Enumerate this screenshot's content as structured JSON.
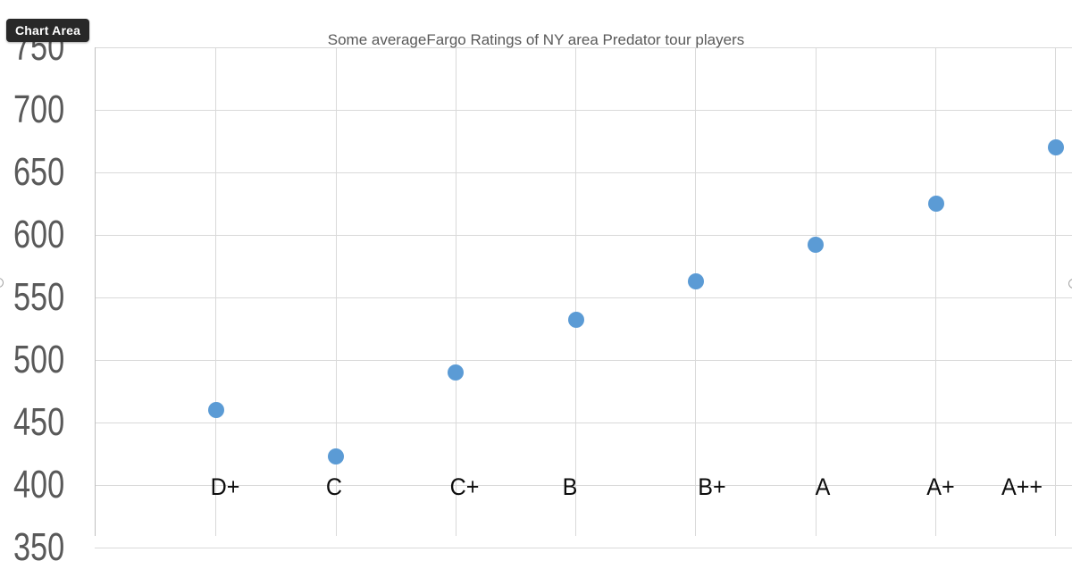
{
  "tooltip": {
    "label": "Chart Area"
  },
  "chart_data": {
    "type": "scatter",
    "title": "Some averageFargo Ratings of NY area Predator tour players",
    "categories": [
      "D+",
      "C",
      "C+",
      "B",
      "B+",
      "A",
      "A+",
      "A++"
    ],
    "values": [
      460,
      423,
      490,
      532,
      563,
      592,
      625,
      670
    ],
    "y_ticks": [
      750,
      700,
      650,
      600,
      550,
      500,
      450,
      400,
      350
    ],
    "ylim": [
      350,
      750
    ],
    "x_axis_crosses_at": 400,
    "grid": true,
    "legend_position": "none",
    "marker_color": "#5B9BD5"
  },
  "colors": {
    "background": "#FFFFFF",
    "gridline": "#D9D9D9",
    "plot_border": "#C0C0C0",
    "y_tick_text": "#595959",
    "x_tick_text": "#0D0D0D",
    "title_text": "#595959",
    "tooltip_bg": "#282828",
    "tooltip_text": "#FFFFFF",
    "marker": "#5B9BD5"
  }
}
